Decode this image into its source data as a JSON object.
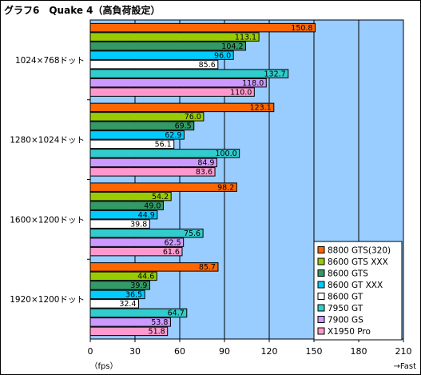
{
  "chart_data": {
    "type": "bar",
    "orientation": "horizontal",
    "title": "グラフ6　Quake 4（高負荷設定）",
    "unit_label": "（fps）",
    "faster_label": "→Fast",
    "xlim": [
      0,
      210
    ],
    "ticks": [
      0,
      30,
      60,
      90,
      120,
      150,
      180,
      210
    ],
    "grid": true,
    "legend_position": "bottom-right",
    "categories": [
      "1024×768ドット",
      "1280×1024ドット",
      "1600×1200ドット",
      "1920×1200ドット"
    ],
    "series": [
      {
        "name": "8800 GTS(320)",
        "color": "#ff6600",
        "values": [
          150.8,
          123.1,
          98.2,
          85.7
        ]
      },
      {
        "name": "8600 GTS XXX",
        "color": "#99cc00",
        "values": [
          113.1,
          76.0,
          54.2,
          44.6
        ]
      },
      {
        "name": "8600 GTS",
        "color": "#339966",
        "values": [
          104.2,
          69.5,
          49.0,
          39.9
        ]
      },
      {
        "name": "8600 GT XXX",
        "color": "#00ccff",
        "values": [
          96.0,
          62.9,
          44.9,
          36.5
        ]
      },
      {
        "name": "8600 GT",
        "color": "#ffffff",
        "values": [
          85.6,
          56.1,
          39.8,
          32.4
        ]
      },
      {
        "name": "7950 GT",
        "color": "#33cccc",
        "values": [
          132.7,
          100.0,
          75.6,
          64.7
        ]
      },
      {
        "name": "7900 GS",
        "color": "#cc99ff",
        "values": [
          118.0,
          84.9,
          62.5,
          53.8
        ]
      },
      {
        "name": "X1950 Pro",
        "color": "#ff99cc",
        "values": [
          110.0,
          83.6,
          61.6,
          51.8
        ]
      }
    ],
    "value_labels": [
      [
        "150.8",
        "123.1",
        "98.2",
        "85.7"
      ],
      [
        "113.1",
        "76.0",
        "54.2",
        "44.6"
      ],
      [
        "104.2",
        "69.5",
        "49.0",
        "39.9"
      ],
      [
        "96.0",
        "62.9",
        "44.9",
        "36.5"
      ],
      [
        "85.6",
        "56.1",
        "39.8",
        "32.4"
      ],
      [
        "132.7",
        "100.0",
        "75.6",
        "64.7"
      ],
      [
        "118.0",
        "84.9",
        "62.5",
        "53.8"
      ],
      [
        "110.0",
        "83.6",
        "61.6",
        "51.8"
      ]
    ],
    "colors": {
      "plot_background": "#99ccff",
      "bar_outline": "#000000"
    }
  }
}
